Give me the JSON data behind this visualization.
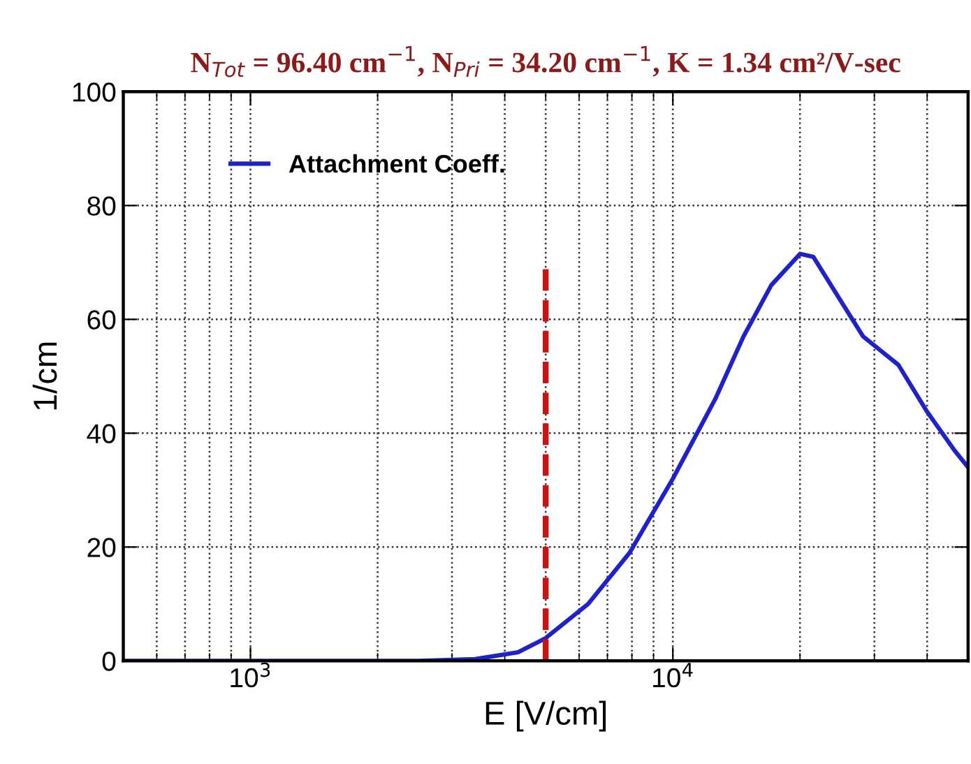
{
  "chart_data": {
    "type": "line",
    "title": "N$_{Tot}$ = 96.40 cm$^{−1}$, N$_{Pri}$ = 34.20 cm$^{−1}$, K = 1.34 cm²/V-sec",
    "xlabel": "E [V/cm]",
    "ylabel": "1/cm",
    "log": "x",
    "xlim": [
      500,
      50000
    ],
    "xticks": [
      {
        "value": 1000,
        "label": "10$^{3}$"
      },
      {
        "value": 10000,
        "label": "10$^{4}$"
      }
    ],
    "ylim": [
      0,
      100
    ],
    "yticks": [
      0,
      20,
      40,
      60,
      80,
      100
    ],
    "series": [
      {
        "name": "Attachment Coeff.",
        "color": "#1f22c8",
        "x": [
          500,
          2500,
          3400,
          4300,
          5000,
          6300,
          7900,
          10000,
          12600,
          14700,
          17100,
          20000,
          21500,
          25100,
          28200,
          34200,
          39800,
          46400,
          50000
        ],
        "values": [
          0,
          0,
          0.3,
          1.5,
          4,
          10,
          19,
          32,
          46,
          57,
          66,
          71.5,
          71,
          63,
          57,
          52,
          44,
          37,
          34
        ]
      }
    ],
    "ref_lines": [
      {
        "axis": "x",
        "value": 5000,
        "color": "#cc1111",
        "line_style": "dashed"
      }
    ],
    "grid": true,
    "legend": "top left",
    "marker": "none",
    "line_style": "solid"
  }
}
